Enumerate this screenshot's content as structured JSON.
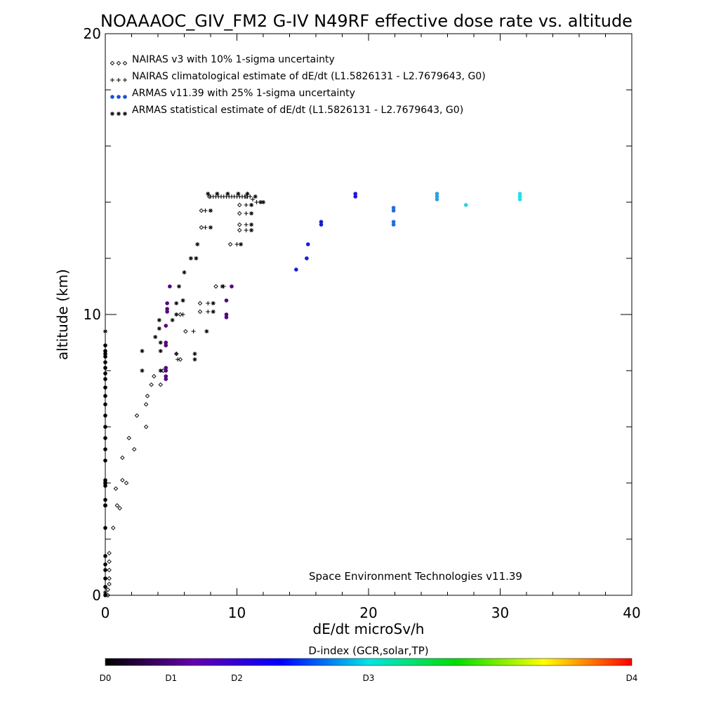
{
  "chart_data": {
    "type": "scatter",
    "title": "NOAAAOC_GIV_FM2 G-IV   N49RF  effective dose rate vs. altitude",
    "xlabel": "dE/dt microSv/h",
    "ylabel": "altitude (km)",
    "xlim": [
      0,
      40
    ],
    "ylim": [
      0,
      20
    ],
    "x_ticks": [
      0,
      10,
      20,
      30,
      40
    ],
    "y_ticks": [
      0,
      10,
      20
    ],
    "annotation": "Space Environment Technologies v11.39",
    "legend_position": "top-left",
    "legend": [
      {
        "marker": "diamond",
        "label": "NAIRAS v3 with 10% 1-sigma uncertainty"
      },
      {
        "marker": "plus",
        "label": "NAIRAS climatological estimate of dE/dt (L1.5826131 - L2.7679643, G0)"
      },
      {
        "marker": "dot",
        "label": "ARMAS v11.39 with 25% 1-sigma uncertainty"
      },
      {
        "marker": "star",
        "label": "ARMAS statistical estimate of dE/dt (L1.5826131 - L2.7679643, G0)"
      }
    ],
    "colorbar": {
      "title": "D-index (GCR,solar,TP)",
      "labels": [
        {
          "text": "D0",
          "value": 0
        },
        {
          "text": "D1",
          "value": 0.25
        },
        {
          "text": "D2",
          "value": 0.5
        },
        {
          "text": "D3",
          "value": 1.0
        },
        {
          "text": "D4",
          "value": 2.0
        }
      ],
      "colors": [
        "#000000",
        "#6600aa",
        "#0000ff",
        "#00e5e5",
        "#00dd00",
        "#ffff00",
        "#ff0000"
      ]
    },
    "series": [
      {
        "marker": "diamond",
        "color": "#000000",
        "points": [
          [
            0.2,
            0.0
          ],
          [
            0.2,
            0.2
          ],
          [
            0.3,
            0.4
          ],
          [
            0.3,
            0.6
          ],
          [
            0.3,
            0.9
          ],
          [
            0.3,
            1.2
          ],
          [
            0.3,
            1.5
          ],
          [
            0.6,
            2.4
          ],
          [
            0.9,
            3.2
          ],
          [
            1.1,
            3.1
          ],
          [
            0.8,
            3.8
          ],
          [
            1.3,
            4.1
          ],
          [
            1.6,
            4.0
          ],
          [
            1.3,
            4.9
          ],
          [
            2.2,
            5.2
          ],
          [
            1.8,
            5.6
          ],
          [
            3.1,
            6.0
          ],
          [
            2.4,
            6.4
          ],
          [
            3.1,
            6.8
          ],
          [
            3.2,
            7.1
          ],
          [
            3.5,
            7.5
          ],
          [
            3.7,
            7.8
          ],
          [
            4.2,
            7.5
          ],
          [
            4.4,
            8.0
          ],
          [
            5.7,
            8.4
          ],
          [
            5.4,
            8.6
          ],
          [
            6.1,
            9.4
          ],
          [
            5.7,
            10.0
          ],
          [
            7.2,
            10.1
          ],
          [
            7.2,
            10.4
          ],
          [
            8.4,
            11.0
          ],
          [
            9.5,
            12.5
          ],
          [
            7.3,
            13.1
          ],
          [
            7.3,
            13.7
          ],
          [
            10.2,
            13.0
          ],
          [
            10.2,
            13.2
          ],
          [
            10.2,
            13.6
          ],
          [
            10.2,
            13.9
          ],
          [
            7.9,
            14.2
          ],
          [
            10.7,
            14.2
          ]
        ]
      },
      {
        "marker": "plus",
        "color": "#000000",
        "points": [
          [
            5.5,
            8.4
          ],
          [
            5.4,
            8.6
          ],
          [
            6.7,
            9.4
          ],
          [
            5.9,
            10.0
          ],
          [
            5.9,
            10.5
          ],
          [
            7.8,
            10.1
          ],
          [
            7.8,
            10.4
          ],
          [
            9.0,
            11.0
          ],
          [
            10.0,
            12.5
          ],
          [
            7.6,
            13.1
          ],
          [
            7.6,
            13.7
          ],
          [
            10.7,
            13.0
          ],
          [
            10.7,
            13.2
          ],
          [
            10.7,
            13.6
          ],
          [
            10.7,
            13.9
          ],
          [
            11.5,
            14.0
          ],
          [
            8.0,
            14.2
          ],
          [
            8.2,
            14.2
          ],
          [
            8.4,
            14.2
          ],
          [
            8.6,
            14.2
          ],
          [
            8.8,
            14.2
          ],
          [
            9.0,
            14.2
          ],
          [
            9.2,
            14.2
          ],
          [
            9.4,
            14.2
          ],
          [
            9.6,
            14.2
          ],
          [
            9.8,
            14.2
          ],
          [
            10.0,
            14.2
          ],
          [
            10.2,
            14.2
          ],
          [
            10.4,
            14.2
          ],
          [
            10.6,
            14.2
          ],
          [
            10.8,
            14.2
          ],
          [
            11.0,
            14.2
          ],
          [
            11.2,
            14.1
          ]
        ]
      },
      {
        "marker": "star",
        "color": "#000000",
        "points": [
          [
            2.8,
            8.0
          ],
          [
            2.8,
            8.7
          ],
          [
            4.2,
            8.0
          ],
          [
            4.2,
            8.7
          ],
          [
            4.2,
            9.0
          ],
          [
            4.1,
            9.5
          ],
          [
            4.1,
            9.8
          ],
          [
            5.1,
            9.8
          ],
          [
            5.4,
            10.0
          ],
          [
            5.4,
            10.4
          ],
          [
            5.9,
            10.5
          ],
          [
            3.8,
            9.2
          ],
          [
            5.6,
            11.0
          ],
          [
            6.8,
            8.4
          ],
          [
            6.8,
            8.6
          ],
          [
            7.7,
            9.4
          ],
          [
            6.0,
            11.5
          ],
          [
            6.5,
            12.0
          ],
          [
            6.9,
            12.0
          ],
          [
            7.0,
            12.5
          ],
          [
            8.2,
            10.1
          ],
          [
            8.2,
            10.4
          ],
          [
            8.9,
            11.0
          ],
          [
            10.3,
            12.5
          ],
          [
            8.0,
            13.1
          ],
          [
            8.0,
            13.7
          ],
          [
            11.1,
            13.0
          ],
          [
            11.1,
            13.2
          ],
          [
            11.1,
            13.6
          ],
          [
            11.1,
            13.9
          ],
          [
            11.8,
            14.0
          ],
          [
            12.0,
            14.0
          ],
          [
            7.8,
            14.3
          ],
          [
            8.5,
            14.3
          ],
          [
            9.3,
            14.3
          ],
          [
            10.1,
            14.3
          ],
          [
            10.8,
            14.3
          ],
          [
            11.4,
            14.2
          ],
          [
            0.0,
            0.1
          ],
          [
            0.0,
            3.2
          ],
          [
            0.0,
            4.0
          ],
          [
            0.0,
            9.4
          ]
        ]
      },
      {
        "marker": "dot",
        "color": "#000000",
        "points": [
          [
            0.0,
            0.0
          ],
          [
            0.0,
            0.3
          ],
          [
            0.0,
            0.6
          ],
          [
            0.0,
            0.9
          ],
          [
            0.0,
            1.1
          ],
          [
            0.0,
            1.4
          ],
          [
            0.0,
            2.4
          ],
          [
            0.0,
            3.2
          ],
          [
            0.0,
            3.4
          ],
          [
            0.0,
            3.9
          ],
          [
            0.0,
            4.0
          ],
          [
            0.0,
            4.1
          ],
          [
            0.0,
            4.8
          ],
          [
            0.0,
            5.2
          ],
          [
            0.0,
            5.6
          ],
          [
            0.0,
            6.0
          ],
          [
            0.0,
            6.4
          ],
          [
            0.0,
            6.8
          ],
          [
            0.0,
            7.1
          ],
          [
            0.0,
            7.4
          ],
          [
            0.0,
            7.7
          ],
          [
            0.0,
            7.9
          ],
          [
            0.0,
            8.1
          ],
          [
            0.0,
            8.3
          ],
          [
            0.0,
            8.5
          ],
          [
            0.0,
            8.6
          ],
          [
            0.0,
            8.7
          ],
          [
            0.0,
            8.9
          ]
        ]
      },
      {
        "marker": "dot",
        "color": "#55007f",
        "points": [
          [
            4.6,
            7.7
          ],
          [
            4.6,
            7.8
          ],
          [
            4.6,
            8.0
          ],
          [
            4.6,
            8.1
          ],
          [
            4.6,
            8.9
          ],
          [
            4.6,
            9.0
          ],
          [
            4.6,
            9.6
          ],
          [
            4.7,
            10.1
          ],
          [
            4.7,
            10.2
          ],
          [
            4.7,
            10.4
          ],
          [
            4.9,
            11.0
          ],
          [
            9.2,
            9.9
          ],
          [
            9.2,
            10.0
          ],
          [
            9.2,
            10.5
          ],
          [
            9.6,
            11.0
          ]
        ]
      },
      {
        "marker": "dot",
        "color": "#1a1ad9",
        "points": [
          [
            14.5,
            11.6
          ],
          [
            15.3,
            12.0
          ],
          [
            15.4,
            12.5
          ],
          [
            16.4,
            13.2
          ],
          [
            16.4,
            13.3
          ],
          [
            19.0,
            14.2
          ],
          [
            19.0,
            14.3
          ]
        ]
      },
      {
        "marker": "dot",
        "color": "#1f6fdf",
        "points": [
          [
            21.9,
            13.2
          ],
          [
            21.9,
            13.3
          ],
          [
            21.9,
            13.7
          ],
          [
            21.9,
            13.8
          ]
        ]
      },
      {
        "marker": "dot",
        "color": "#2aa0e8",
        "points": [
          [
            25.2,
            14.1
          ],
          [
            25.2,
            14.2
          ],
          [
            25.2,
            14.3
          ]
        ]
      },
      {
        "marker": "dot",
        "color": "#33cce6",
        "points": [
          [
            27.4,
            13.9
          ]
        ]
      },
      {
        "marker": "dot",
        "color": "#22e0e8",
        "points": [
          [
            31.5,
            14.1
          ],
          [
            31.5,
            14.2
          ],
          [
            31.5,
            14.3
          ]
        ]
      }
    ]
  }
}
